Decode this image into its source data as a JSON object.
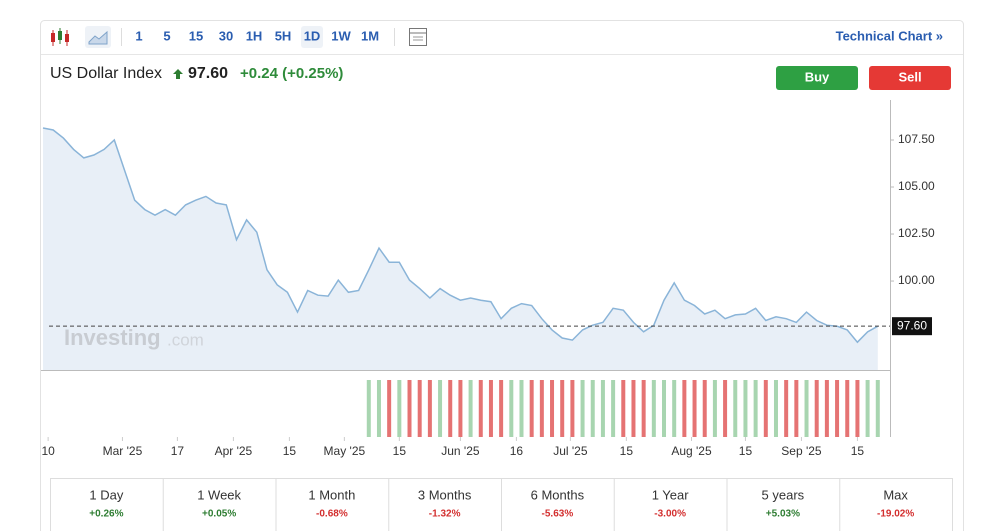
{
  "toolbar": {
    "intervals": [
      "1",
      "5",
      "15",
      "30",
      "1H",
      "5H",
      "1D",
      "1W",
      "1M"
    ],
    "link": "Technical Chart »"
  },
  "header": {
    "name": "US Dollar Index",
    "change": "+0.24 (+0.25%)"
  },
  "buttons": {
    "buy": "Buy",
    "sell": "Sell"
  },
  "watermark": [
    "Investing",
    ".com"
  ],
  "chart_data": {
    "type": "line",
    "color": "#8ab4d8",
    "fill": "#e8eff7",
    "values": [
      108.14,
      108.03,
      107.6,
      107.0,
      106.55,
      106.7,
      107.0,
      107.5,
      105.9,
      104.3,
      103.8,
      103.5,
      103.8,
      103.5,
      104.05,
      104.3,
      104.5,
      104.15,
      104.05,
      102.2,
      103.25,
      102.6,
      100.6,
      99.8,
      99.4,
      98.35,
      99.5,
      99.25,
      99.2,
      100.05,
      99.4,
      99.5,
      100.6,
      101.75,
      101.0,
      101.0,
      100.05,
      99.6,
      99.1,
      99.6,
      99.25,
      98.98,
      99.1,
      98.98,
      98.9,
      98.0,
      98.55,
      98.8,
      98.7,
      98.0,
      97.4,
      96.97,
      96.86,
      97.4,
      97.65,
      97.8,
      98.55,
      98.45,
      97.8,
      97.3,
      97.65,
      98.98,
      99.9,
      98.98,
      98.7,
      98.25,
      98.45,
      98.0,
      98.2,
      98.25,
      98.55,
      97.9,
      98.1,
      98.0,
      97.8,
      98.35,
      97.9,
      97.65,
      97.6,
      97.4,
      96.75,
      97.3,
      97.6
    ],
    "xlim": [
      -0.2,
      83.2
    ],
    "xticks": [
      {
        "value": 0.5,
        "label": "10"
      },
      {
        "value": 7.8,
        "label": "Mar '25"
      },
      {
        "value": 13.2,
        "label": "17"
      },
      {
        "value": 18.7,
        "label": "Apr '25"
      },
      {
        "value": 24.2,
        "label": "15"
      },
      {
        "value": 29.6,
        "label": "May '25"
      },
      {
        "value": 35,
        "label": "15"
      },
      {
        "value": 41,
        "label": "Jun '25"
      },
      {
        "value": 46.5,
        "label": "16"
      },
      {
        "value": 51.8,
        "label": "Jul '25"
      },
      {
        "value": 57.3,
        "label": "15"
      },
      {
        "value": 63.7,
        "label": "Aug '25"
      },
      {
        "value": 69,
        "label": "15"
      },
      {
        "value": 74.5,
        "label": "Sep '25"
      },
      {
        "value": 80,
        "label": "15"
      }
    ],
    "ylim": [
      95.27,
      108.67
    ],
    "yticks": [
      {
        "value": 100,
        "label": "100.00"
      },
      {
        "value": 102.5,
        "label": "102.50"
      },
      {
        "value": 105,
        "label": "105.00"
      },
      {
        "value": 107.5,
        "label": "107.50"
      }
    ],
    "current": {
      "value": 97.6,
      "label": "97.60"
    }
  },
  "performance": [
    {
      "period": "1 Day",
      "change": "+0.26%"
    },
    {
      "period": "1 Week",
      "change": "+0.05%"
    },
    {
      "period": "1 Month",
      "change": "-0.68%"
    },
    {
      "period": "3 Months",
      "change": "-1.32%"
    },
    {
      "period": "6 Months",
      "change": "-5.63%"
    },
    {
      "period": "1 Year",
      "change": "-3.00%"
    },
    {
      "period": "5 years",
      "change": "+5.03%"
    },
    {
      "period": "Max",
      "change": "-19.02%"
    }
  ]
}
